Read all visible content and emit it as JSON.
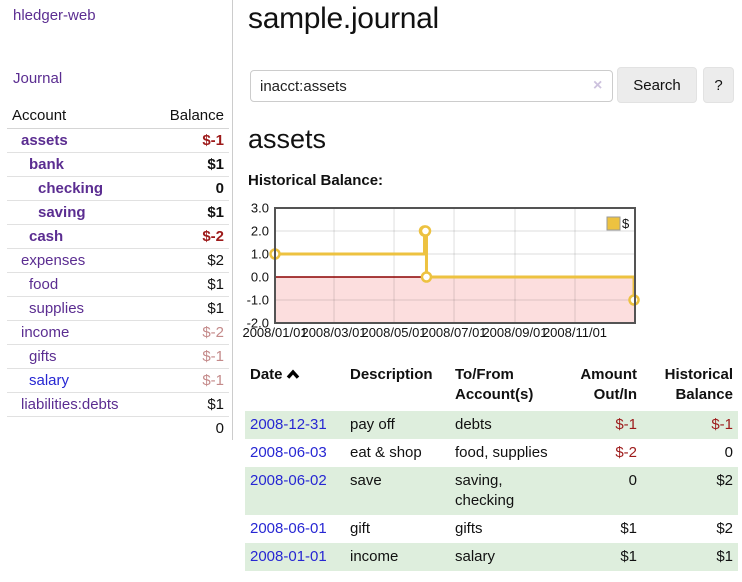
{
  "sidebar": {
    "app_title": "hledger-web",
    "journal_label": "Journal",
    "accounts_table": {
      "headers": {
        "account": "Account",
        "balance": "Balance"
      },
      "rows": [
        {
          "name": "assets",
          "level": 1,
          "bold": true,
          "balance": "$-1",
          "balance_style": "neg"
        },
        {
          "name": "bank",
          "level": 2,
          "bold": true,
          "balance": "$1",
          "balance_style": ""
        },
        {
          "name": "checking",
          "level": 3,
          "bold": true,
          "balance": "0",
          "balance_style": ""
        },
        {
          "name": "saving",
          "level": 3,
          "bold": true,
          "balance": "$1",
          "balance_style": ""
        },
        {
          "name": "cash",
          "level": 2,
          "bold": true,
          "balance": "$-2",
          "balance_style": "neg"
        },
        {
          "name": "expenses",
          "level": 1,
          "bold": false,
          "balance": "$2",
          "balance_style": ""
        },
        {
          "name": "food",
          "level": 2,
          "bold": false,
          "balance": "$1",
          "balance_style": ""
        },
        {
          "name": "supplies",
          "level": 2,
          "bold": false,
          "balance": "$1",
          "balance_style": ""
        },
        {
          "name": "income",
          "level": 1,
          "bold": false,
          "balance": "$-2",
          "balance_style": "neg-faded"
        },
        {
          "name": "gifts",
          "level": 2,
          "bold": false,
          "balance": "$-1",
          "balance_style": "neg-faded"
        },
        {
          "name": "salary",
          "level": 2,
          "bold": false,
          "balance": "$-1",
          "balance_style": "neg-faded",
          "link_color": "blue"
        },
        {
          "name": "liabilities:debts",
          "level": 1,
          "bold": false,
          "balance": "$1",
          "balance_style": ""
        }
      ],
      "total": "0"
    }
  },
  "main": {
    "title": "sample.journal",
    "search": {
      "value": "inacct:assets",
      "clear_icon": "×",
      "button_label": "Search",
      "help_label": "?"
    },
    "account_heading": "assets",
    "chart_label": "Historical Balance:",
    "transactions": {
      "headers": [
        "Date",
        "Description",
        "To/From Account(s)",
        "Amount Out/In",
        "Historical Balance"
      ],
      "rows": [
        {
          "date": "2008-12-31",
          "description": "pay off",
          "accounts": "debts",
          "amount": "$-1",
          "amount_neg": true,
          "balance": "$-1",
          "balance_neg": true,
          "green": true
        },
        {
          "date": "2008-06-03",
          "description": "eat & shop",
          "accounts": "food, supplies",
          "amount": "$-2",
          "amount_neg": true,
          "balance": "0",
          "balance_neg": false,
          "green": false
        },
        {
          "date": "2008-06-02",
          "description": "save",
          "accounts": "saving, checking",
          "amount": "0",
          "amount_neg": false,
          "balance": "$2",
          "balance_neg": false,
          "green": true
        },
        {
          "date": "2008-06-01",
          "description": "gift",
          "accounts": "gifts",
          "amount": "$1",
          "amount_neg": false,
          "balance": "$2",
          "balance_neg": false,
          "green": false
        },
        {
          "date": "2008-01-01",
          "description": "income",
          "accounts": "salary",
          "amount": "$1",
          "amount_neg": false,
          "balance": "$1",
          "balance_neg": false,
          "green": true
        }
      ]
    }
  },
  "chart_data": {
    "type": "line",
    "title": "Historical Balance",
    "step": true,
    "series": [
      {
        "name": "$",
        "color": "#edc240",
        "points": [
          [
            "2008-01-01",
            1
          ],
          [
            "2008-06-01",
            2
          ],
          [
            "2008-06-02",
            2
          ],
          [
            "2008-06-03",
            0
          ],
          [
            "2008-12-31",
            -1
          ]
        ]
      }
    ],
    "x_range": [
      "2008-01-01",
      "2009-01-01"
    ],
    "y_range": [
      -2,
      3
    ],
    "y_ticks": [
      "3.0",
      "2.0",
      "1.0",
      "0.0",
      "-1.0",
      "-2.0"
    ],
    "x_ticks": [
      {
        "label": "2008/01/01",
        "date": "2008-01-01"
      },
      {
        "label": "2008/03/01",
        "date": "2008-03-01"
      },
      {
        "label": "2008/05/01",
        "date": "2008-05-01"
      },
      {
        "label": "2008/07/01",
        "date": "2008-07-01"
      },
      {
        "label": "2008/09/01",
        "date": "2008-09-01"
      },
      {
        "label": "2008/11/01",
        "date": "2008-11-01"
      }
    ],
    "grid": true,
    "negative_region_color": "#fcdede",
    "zero_line_color": "#8b0000",
    "frame_color": "#545454",
    "legend": {
      "label": "$",
      "position": "top-right"
    }
  },
  "colors": {
    "link_purple": "#5b2d91",
    "link_blue": "#2727d3",
    "negative_red": "#9d1a1a",
    "negative_faded_red": "#c48a8a",
    "row_green": "#deeedd",
    "series_gold": "#edc240",
    "negative_region_pink": "#fcdede",
    "zero_line_red": "#8b0000"
  }
}
